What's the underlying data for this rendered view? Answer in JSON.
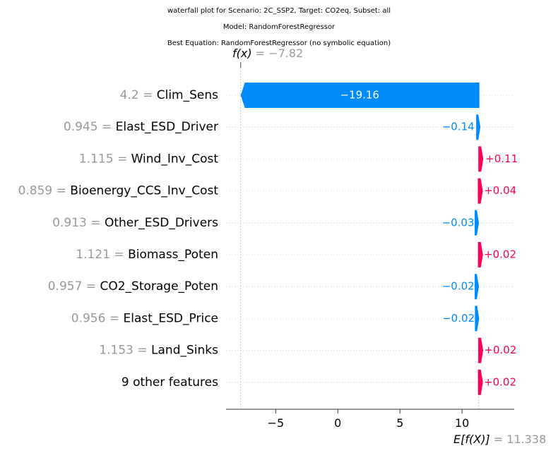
{
  "titles": {
    "line1": "waterfall plot for Scenario: 2C_SSP2, Target: CO2eq, Subset: all",
    "line2": "Model: RandomForestRegressor",
    "line3": "Best Equation: RandomForestRegressor (no symbolic equation)"
  },
  "colors": {
    "positive": "#ff0051",
    "negative": "#008bfb",
    "gray_text": "#999999",
    "grid": "#cccccc"
  },
  "chart_data": {
    "type": "bar",
    "subtype": "waterfall",
    "base_value": 11.338,
    "final_value": -7.82,
    "fx_label": "f(x)",
    "fx_value_text": "= −7.82",
    "efx_label": "E[f(X)]",
    "efx_value_text": "= 11.338",
    "xlim": [
      -9.0,
      14.2
    ],
    "xticks": [
      {
        "value": -5,
        "label": "−5"
      },
      {
        "value": 0,
        "label": "0"
      },
      {
        "value": 5,
        "label": "5"
      },
      {
        "value": 10,
        "label": "10"
      }
    ],
    "features": [
      {
        "value_text": "4.2",
        "name": "Clim_Sens",
        "shap": -19.16,
        "label": "−19.16"
      },
      {
        "value_text": "0.945",
        "name": "Elast_ESD_Driver",
        "shap": -0.14,
        "label": "−0.14"
      },
      {
        "value_text": "1.115",
        "name": "Wind_Inv_Cost",
        "shap": 0.11,
        "label": "+0.11"
      },
      {
        "value_text": "0.859",
        "name": "Bioenergy_CCS_Inv_Cost",
        "shap": 0.04,
        "label": "+0.04"
      },
      {
        "value_text": "0.913",
        "name": "Other_ESD_Drivers",
        "shap": -0.03,
        "label": "−0.03"
      },
      {
        "value_text": "1.121",
        "name": "Biomass_Poten",
        "shap": 0.02,
        "label": "+0.02"
      },
      {
        "value_text": "0.957",
        "name": "CO2_Storage_Poten",
        "shap": -0.02,
        "label": "−0.02"
      },
      {
        "value_text": "0.956",
        "name": "Elast_ESD_Price",
        "shap": -0.02,
        "label": "−0.02"
      },
      {
        "value_text": "1.153",
        "name": "Land_Sinks",
        "shap": 0.02,
        "label": "+0.02"
      },
      {
        "value_text": "",
        "name": "9 other features",
        "shap": 0.02,
        "label": "+0.02"
      }
    ]
  }
}
